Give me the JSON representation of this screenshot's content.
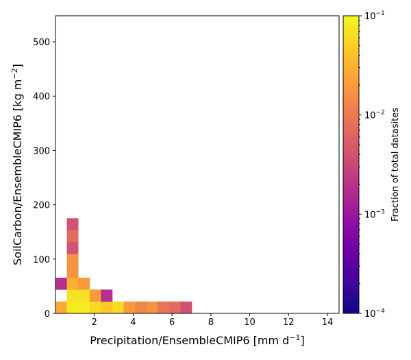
{
  "chart_data": {
    "type": "heatmap",
    "xlabel": "Precipitation/EnsembleCMIP6 [mm d",
    "xlabel_sup": "−1",
    "xlabel_end": "]",
    "ylabel": "SoilCarbon/EnsembleCMIP6 [kg m",
    "ylabel_sup": "−2",
    "ylabel_end": "]",
    "xlim": [
      0,
      14.6
    ],
    "ylim": [
      0,
      548
    ],
    "xticks": [
      2,
      4,
      6,
      8,
      10,
      12,
      14
    ],
    "yticks": [
      0,
      100,
      200,
      300,
      400,
      500
    ],
    "x_bin_width": 0.585,
    "y_bin_width": 21.9,
    "colorbar": {
      "label": "Fraction of total datasites",
      "scale": "log",
      "range": [
        0.0001,
        0.1
      ],
      "ticks": [
        {
          "value": 0.1,
          "base": "10",
          "exp": "−1"
        },
        {
          "value": 0.01,
          "base": "10",
          "exp": "−2"
        },
        {
          "value": 0.001,
          "base": "10",
          "exp": "−3"
        },
        {
          "value": 0.0001,
          "base": "10",
          "exp": "−4"
        }
      ],
      "colormap": "plasma"
    },
    "cells": [
      {
        "x": 0.0,
        "y": 0.0,
        "v": 0.025
      },
      {
        "x": 0.585,
        "y": 0.0,
        "v": 0.08
      },
      {
        "x": 1.17,
        "y": 0.0,
        "v": 0.08
      },
      {
        "x": 1.755,
        "y": 0.0,
        "v": 0.06
      },
      {
        "x": 2.34,
        "y": 0.0,
        "v": 0.045
      },
      {
        "x": 2.925,
        "y": 0.0,
        "v": 0.06
      },
      {
        "x": 3.51,
        "y": 0.0,
        "v": 0.02
      },
      {
        "x": 4.095,
        "y": 0.0,
        "v": 0.013
      },
      {
        "x": 4.68,
        "y": 0.0,
        "v": 0.016
      },
      {
        "x": 5.265,
        "y": 0.0,
        "v": 0.009
      },
      {
        "x": 5.85,
        "y": 0.0,
        "v": 0.007
      },
      {
        "x": 6.435,
        "y": 0.0,
        "v": 0.004
      },
      {
        "x": 0.585,
        "y": 21.9,
        "v": 0.07
      },
      {
        "x": 1.17,
        "y": 21.9,
        "v": 0.07
      },
      {
        "x": 1.755,
        "y": 21.9,
        "v": 0.02
      },
      {
        "x": 2.34,
        "y": 21.9,
        "v": 0.0018
      },
      {
        "x": 0.0,
        "y": 43.8,
        "v": 0.0018
      },
      {
        "x": 0.585,
        "y": 43.8,
        "v": 0.03
      },
      {
        "x": 1.17,
        "y": 43.8,
        "v": 0.02
      },
      {
        "x": 0.585,
        "y": 65.7,
        "v": 0.017
      },
      {
        "x": 0.585,
        "y": 87.6,
        "v": 0.017
      },
      {
        "x": 0.585,
        "y": 109.5,
        "v": 0.004
      },
      {
        "x": 0.585,
        "y": 131.4,
        "v": 0.007
      },
      {
        "x": 0.585,
        "y": 153.3,
        "v": 0.004
      }
    ]
  }
}
